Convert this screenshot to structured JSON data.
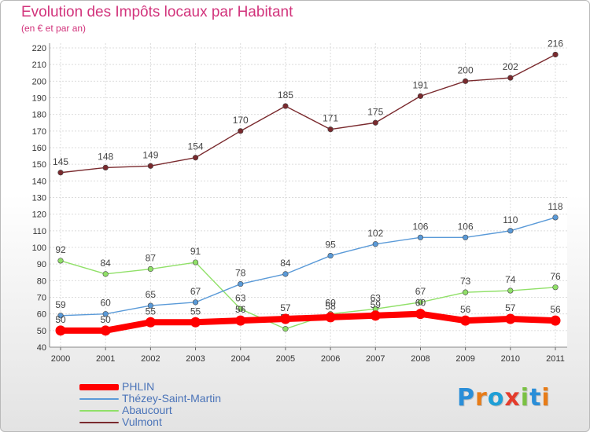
{
  "header": {
    "title": "Evolution des Impôts locaux par Habitant",
    "subtitle": "(en € et par an)"
  },
  "logo": {
    "text": "Proxiti",
    "letter_colors": [
      "#2a8ed8",
      "#e77c18",
      "#1f9fd6",
      "#e43c2c",
      "#7ac143",
      "#2a8ed8",
      "#e77c18"
    ]
  },
  "chart_data": {
    "type": "line",
    "categories": [
      "2000",
      "2001",
      "2002",
      "2003",
      "2004",
      "2005",
      "2006",
      "2007",
      "2008",
      "2009",
      "2010",
      "2011"
    ],
    "ylim": [
      40,
      220
    ],
    "yticks": [
      40,
      50,
      60,
      70,
      80,
      90,
      100,
      110,
      120,
      130,
      140,
      150,
      160,
      170,
      180,
      190,
      200,
      210,
      220
    ],
    "grid": true,
    "legend_position": "bottom-left",
    "series": [
      {
        "name": "PHLIN",
        "color": "#ff0000",
        "values": [
          50,
          50,
          55,
          55,
          56,
          57,
          58,
          59,
          60,
          56,
          57,
          56
        ]
      },
      {
        "name": "Thézey-Saint-Martin",
        "color": "#5a9ad8",
        "values": [
          59,
          60,
          65,
          67,
          78,
          84,
          95,
          102,
          106,
          106,
          110,
          118
        ]
      },
      {
        "name": "Abaucourt",
        "color": "#90e068",
        "values": [
          92,
          84,
          87,
          91,
          63,
          51,
          60,
          63,
          67,
          73,
          74,
          76
        ]
      },
      {
        "name": "Vulmont",
        "color": "#7a2a2e",
        "values": [
          145,
          148,
          149,
          154,
          170,
          185,
          171,
          175,
          191,
          200,
          202,
          216
        ]
      }
    ]
  }
}
